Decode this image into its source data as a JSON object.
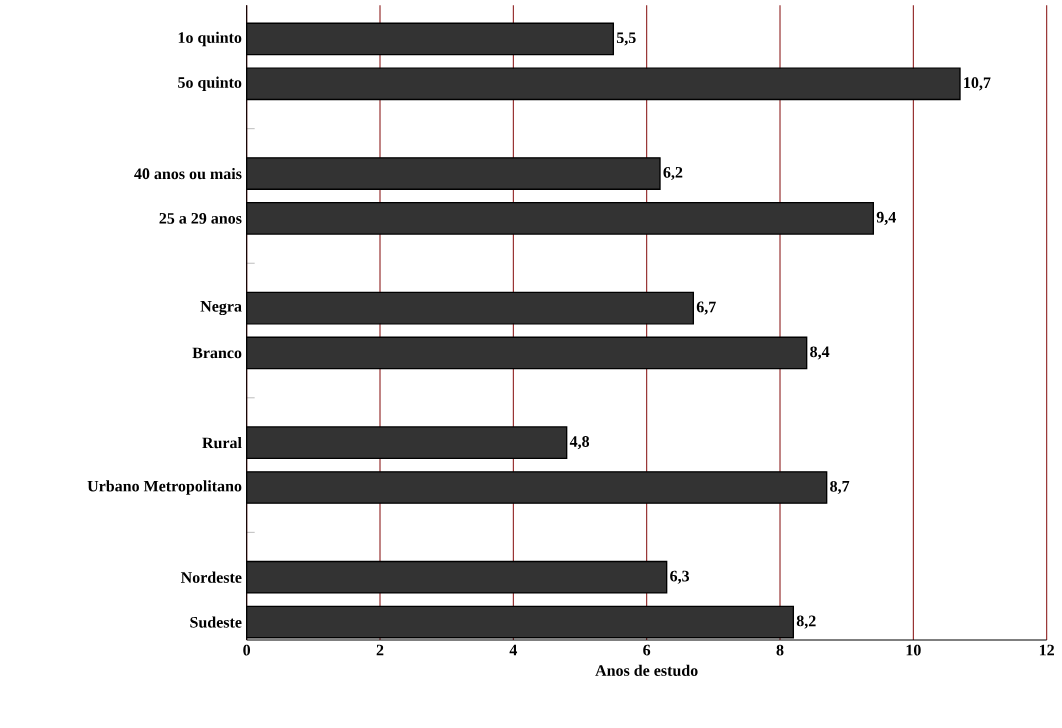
{
  "chart_data": {
    "type": "bar",
    "orientation": "horizontal",
    "xlabel": "Anos de estudo",
    "categories": [
      "1o quinto",
      "5o quinto",
      null,
      "40 anos ou mais",
      "25 a 29 anos",
      null,
      "Negra",
      "Branco",
      null,
      "Rural",
      "Urbano Metropolitano",
      null,
      "Nordeste",
      "Sudeste"
    ],
    "values": [
      5.5,
      10.7,
      null,
      6.2,
      9.4,
      null,
      6.7,
      8.4,
      null,
      4.8,
      8.7,
      null,
      6.3,
      8.2
    ],
    "value_labels": [
      "5,5",
      "10,7",
      null,
      "6,2",
      "9,4",
      null,
      "6,7",
      "8,4",
      null,
      "4,8",
      "8,7",
      null,
      "6,3",
      "8,2"
    ],
    "color": "#333333",
    "grid": "x",
    "xlim": [
      0,
      12
    ],
    "xticks": [
      0,
      2,
      4,
      6,
      8,
      10,
      12
    ]
  }
}
